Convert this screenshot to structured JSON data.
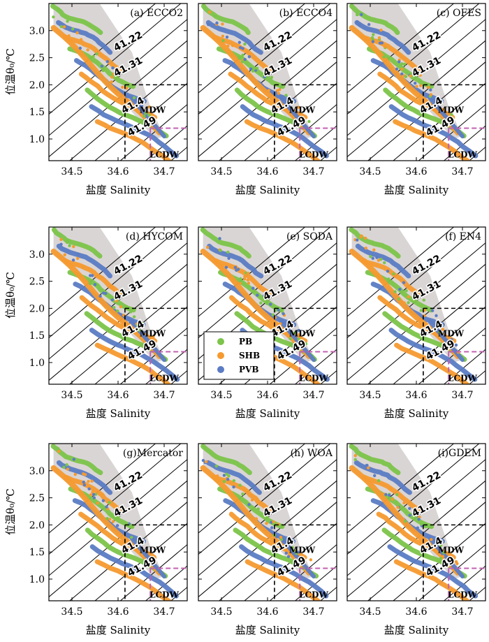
{
  "figure": {
    "ylabel": "位温θ₀/℃",
    "xlabel": "盐度 Salinity",
    "legend": [
      {
        "name": "PB",
        "color": "#7cc44a"
      },
      {
        "name": "SHB",
        "color": "#f59a2f"
      },
      {
        "name": "PVB",
        "color": "#5b7cc4"
      }
    ],
    "contour_labels": [
      "41.22",
      "41.31",
      "41.4",
      "41.49"
    ],
    "water_masses": [
      "MDW",
      "LCDW"
    ],
    "colors": {
      "background_cloud": "#d6d0d0",
      "guide_black": "#000000",
      "guide_magenta": "#c060b0"
    }
  },
  "chart_data": [
    {
      "type": "scatter",
      "title": "(a) ECCO2",
      "xlim": [
        34.45,
        34.75
      ],
      "ylim": [
        0.6,
        3.5
      ],
      "xticks": [
        "34.5",
        "34.6",
        "34.7"
      ],
      "yticks": [
        "1.0",
        "1.5",
        "2.0",
        "2.5",
        "3.0"
      ],
      "xlabel": "盐度 Salinity",
      "ylabel": "位温θ₀/℃",
      "show_xlabel": true,
      "show_ylabel": true,
      "guides": {
        "mdw_salinity": 34.615,
        "mdw_theta": 2.0,
        "lcdw_salinity": 34.67,
        "lcdw_theta": 1.2
      }
    },
    {
      "type": "scatter",
      "title": "(b) ECCO4",
      "xlim": [
        34.45,
        34.75
      ],
      "ylim": [
        0.6,
        3.5
      ],
      "xticks": [
        "34.5",
        "34.6",
        "34.7"
      ],
      "yticks": [],
      "xlabel": "盐度 Salinity",
      "ylabel": "",
      "show_xlabel": true,
      "show_ylabel": false,
      "guides": {
        "mdw_salinity": 34.615,
        "mdw_theta": 2.0,
        "lcdw_salinity": 34.67,
        "lcdw_theta": 1.2
      }
    },
    {
      "type": "scatter",
      "title": "(c) OFES",
      "xlim": [
        34.45,
        34.75
      ],
      "ylim": [
        0.6,
        3.5
      ],
      "xticks": [
        "34.5",
        "34.6",
        "34.7"
      ],
      "yticks": [],
      "xlabel": "盐度 Salinity",
      "ylabel": "",
      "show_xlabel": true,
      "show_ylabel": false,
      "guides": {
        "mdw_salinity": 34.615,
        "mdw_theta": 2.0,
        "lcdw_salinity": 34.67,
        "lcdw_theta": 1.2
      }
    },
    {
      "type": "scatter",
      "title": "(d) HYCOM",
      "xlim": [
        34.45,
        34.75
      ],
      "ylim": [
        0.6,
        3.5
      ],
      "xticks": [
        "34.5",
        "34.6",
        "34.7"
      ],
      "yticks": [
        "1.0",
        "1.5",
        "2.0",
        "2.5",
        "3.0"
      ],
      "xlabel": "盐度 Salinity",
      "ylabel": "位温θ₀/℃",
      "show_xlabel": true,
      "show_ylabel": true,
      "guides": {
        "mdw_salinity": 34.615,
        "mdw_theta": 2.0,
        "lcdw_salinity": 34.67,
        "lcdw_theta": 1.2
      }
    },
    {
      "type": "scatter",
      "title": "(e) SODA",
      "xlim": [
        34.45,
        34.75
      ],
      "ylim": [
        0.6,
        3.5
      ],
      "xticks": [
        "34.5",
        "34.6",
        "34.7"
      ],
      "yticks": [],
      "xlabel": "盐度 Salinity",
      "ylabel": "",
      "show_xlabel": true,
      "show_ylabel": false,
      "legend": true,
      "guides": {
        "mdw_salinity": 34.615,
        "mdw_theta": 2.0,
        "lcdw_salinity": 34.67,
        "lcdw_theta": 1.2
      }
    },
    {
      "type": "scatter",
      "title": "(f) EN4",
      "xlim": [
        34.45,
        34.75
      ],
      "ylim": [
        0.6,
        3.5
      ],
      "xticks": [
        "34.5",
        "34.6",
        "34.7"
      ],
      "yticks": [],
      "xlabel": "盐度 Salinity",
      "ylabel": "",
      "show_xlabel": true,
      "show_ylabel": false,
      "guides": {
        "mdw_salinity": 34.615,
        "mdw_theta": 2.0,
        "lcdw_salinity": 34.67,
        "lcdw_theta": 1.2
      }
    },
    {
      "type": "scatter",
      "title": "(g)Mercator",
      "xlim": [
        34.45,
        34.75
      ],
      "ylim": [
        0.6,
        3.5
      ],
      "xticks": [
        "34.5",
        "34.6",
        "34.7"
      ],
      "yticks": [
        "1.0",
        "1.5",
        "2.0",
        "2.5",
        "3.0"
      ],
      "xlabel": "盐度 Salinity",
      "ylabel": "位温θ₀/℃",
      "show_xlabel": true,
      "show_ylabel": true,
      "guides": {
        "mdw_salinity": 34.615,
        "mdw_theta": 2.0,
        "lcdw_salinity": 34.67,
        "lcdw_theta": 1.2
      }
    },
    {
      "type": "scatter",
      "title": "(h) WOA",
      "xlim": [
        34.45,
        34.75
      ],
      "ylim": [
        0.6,
        3.5
      ],
      "xticks": [
        "34.5",
        "34.6",
        "34.7"
      ],
      "yticks": [],
      "xlabel": "盐度 Salinity",
      "ylabel": "",
      "show_xlabel": true,
      "show_ylabel": false,
      "guides": {
        "mdw_salinity": 34.615,
        "mdw_theta": 2.0,
        "lcdw_salinity": 34.67,
        "lcdw_theta": 1.2
      }
    },
    {
      "type": "scatter",
      "title": "(i)GDEM",
      "xlim": [
        34.45,
        34.75
      ],
      "ylim": [
        0.6,
        3.5
      ],
      "xticks": [
        "34.5",
        "34.6",
        "34.7"
      ],
      "yticks": [],
      "xlabel": "盐度 Salinity",
      "ylabel": "",
      "show_xlabel": true,
      "show_ylabel": false,
      "guides": {
        "mdw_salinity": 34.615,
        "mdw_theta": 2.0,
        "lcdw_salinity": 34.67,
        "lcdw_theta": 1.2
      }
    }
  ]
}
